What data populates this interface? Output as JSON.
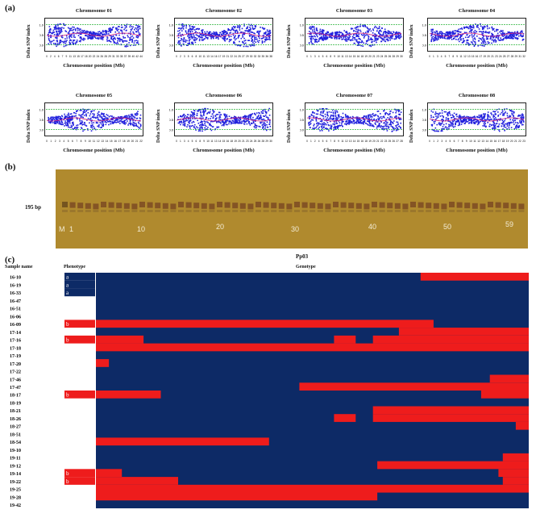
{
  "panel_a": {
    "label": "(a)",
    "y_axis_label": "Delta SNP index",
    "x_axis_label": "Chromosome position (Mb)",
    "y_ticks": [
      "1.0",
      "0.5",
      "0.0"
    ],
    "chromosomes": [
      {
        "title": "Chromosome 01",
        "max_mb": 44
      },
      {
        "title": "Chromosome 02",
        "max_mb": 38
      },
      {
        "title": "Chromosome 03",
        "max_mb": 30
      },
      {
        "title": "Chromosome 04",
        "max_mb": 32
      },
      {
        "title": "Chromosome 05",
        "max_mb": 22
      },
      {
        "title": "Chromosome 06",
        "max_mb": 30
      },
      {
        "title": "Chromosome 07",
        "max_mb": 28
      },
      {
        "title": "Chromosome 08",
        "max_mb": 23
      }
    ],
    "colors": {
      "points": "#2222dd",
      "threshold": "#2bb33a",
      "fit": "#d0207a"
    }
  },
  "panel_b": {
    "label": "(b)",
    "marker_size": "195 bp",
    "lane_labels": [
      "M",
      "1",
      "10",
      "20",
      "30",
      "40",
      "50",
      "59"
    ],
    "lanes": 59
  },
  "panel_c": {
    "label": "(c)",
    "title": "Pp03",
    "sample_header": "Sample name",
    "phenotype_header": "Phenotype",
    "genotype_header": "Genotype",
    "colors": {
      "background": "#0d2a66",
      "highlight": "#ee1c1c",
      "white": "#ffffff"
    },
    "n_markers": 100,
    "rows": [
      {
        "name": "16-10",
        "phenotype": "a",
        "segments": [
          [
            75,
            100
          ]
        ]
      },
      {
        "name": "16-19",
        "phenotype": "a",
        "segments": []
      },
      {
        "name": "16-33",
        "phenotype": "a",
        "segments": []
      },
      {
        "name": "16-47",
        "phenotype": "",
        "segments": []
      },
      {
        "name": "16-51",
        "phenotype": "",
        "segments": []
      },
      {
        "name": "16-06",
        "phenotype": "",
        "segments": []
      },
      {
        "name": "16-09",
        "phenotype": "b",
        "segments": [
          [
            0,
            78
          ]
        ]
      },
      {
        "name": "17-14",
        "phenotype": "",
        "segments": [
          [
            70,
            100
          ]
        ]
      },
      {
        "name": "17-16",
        "phenotype": "b",
        "segments": [
          [
            0,
            11
          ],
          [
            55,
            60
          ],
          [
            64,
            100
          ]
        ]
      },
      {
        "name": "17-18",
        "phenotype": "",
        "segments": [
          [
            0,
            100
          ]
        ]
      },
      {
        "name": "17-19",
        "phenotype": "",
        "segments": []
      },
      {
        "name": "17-20",
        "phenotype": "",
        "segments": [
          [
            0,
            3
          ]
        ]
      },
      {
        "name": "17-22",
        "phenotype": "",
        "segments": []
      },
      {
        "name": "17-46",
        "phenotype": "",
        "segments": [
          [
            91,
            100
          ]
        ]
      },
      {
        "name": "17-47",
        "phenotype": "",
        "segments": [
          [
            47,
            100
          ]
        ]
      },
      {
        "name": "18-17",
        "phenotype": "b",
        "segments": [
          [
            0,
            15
          ],
          [
            89,
            100
          ]
        ]
      },
      {
        "name": "18-19",
        "phenotype": "",
        "segments": []
      },
      {
        "name": "18-21",
        "phenotype": "",
        "segments": [
          [
            64,
            100
          ]
        ]
      },
      {
        "name": "18-26",
        "phenotype": "",
        "segments": [
          [
            55,
            60
          ],
          [
            64,
            100
          ]
        ]
      },
      {
        "name": "18-27",
        "phenotype": "",
        "segments": [
          [
            97,
            100
          ]
        ]
      },
      {
        "name": "18-51",
        "phenotype": "",
        "segments": []
      },
      {
        "name": "18-54",
        "phenotype": "",
        "segments": [
          [
            0,
            40
          ]
        ]
      },
      {
        "name": "19-10",
        "phenotype": "",
        "segments": [
          [
            100,
            100
          ]
        ]
      },
      {
        "name": "19-11",
        "phenotype": "",
        "segments": [
          [
            94,
            100
          ]
        ]
      },
      {
        "name": "19-12",
        "phenotype": "",
        "segments": [
          [
            65,
            100
          ]
        ]
      },
      {
        "name": "19-14",
        "phenotype": "b",
        "segments": [
          [
            0,
            6
          ],
          [
            93,
            100
          ]
        ]
      },
      {
        "name": "19-22",
        "phenotype": "b",
        "segments": [
          [
            0,
            19
          ],
          [
            94,
            100
          ]
        ]
      },
      {
        "name": "19-25",
        "phenotype": "",
        "segments": [
          [
            0,
            100
          ]
        ]
      },
      {
        "name": "19-28",
        "phenotype": "",
        "segments": [
          [
            0,
            65
          ]
        ]
      },
      {
        "name": "19-42",
        "phenotype": "",
        "segments": []
      }
    ]
  }
}
